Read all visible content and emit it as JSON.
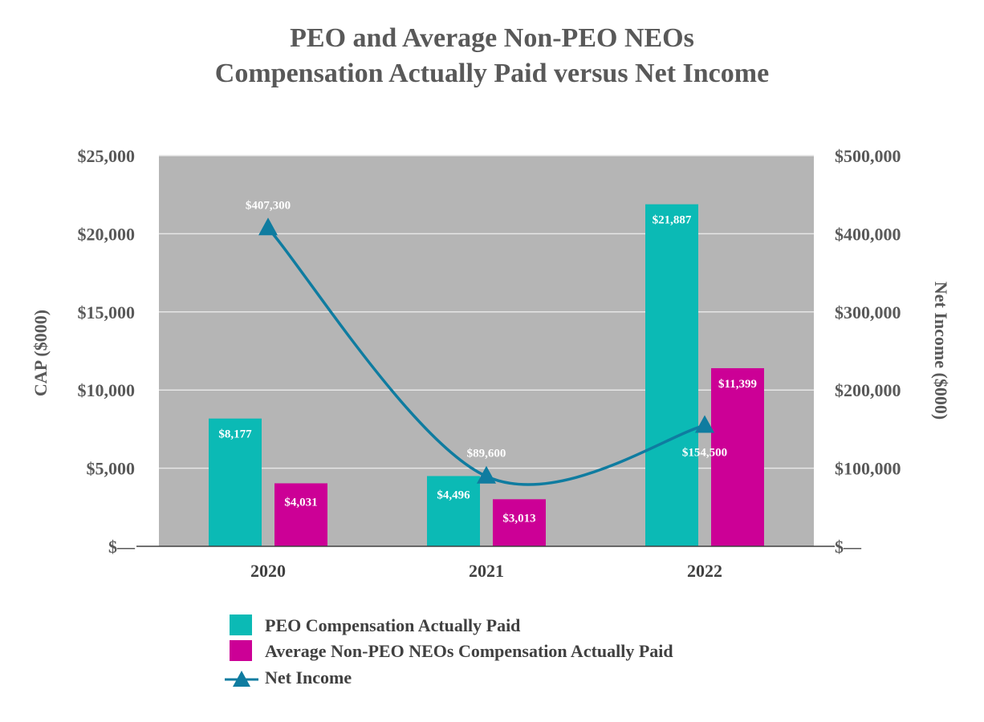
{
  "chart_data": {
    "type": "bar",
    "title": [
      "PEO and Average Non-PEO NEOs",
      "Compensation Actually Paid versus Net Income"
    ],
    "categories": [
      "2020",
      "2021",
      "2022"
    ],
    "series": [
      {
        "name": "PEO Compensation Actually Paid",
        "type": "bar",
        "axis": "left",
        "color": "#0BBAB5",
        "values": [
          8177,
          4496,
          21887
        ],
        "labels": [
          "$8,177",
          "$4,496",
          "$21,887"
        ]
      },
      {
        "name": "Average Non-PEO NEOs Compensation Actually Paid",
        "type": "bar",
        "axis": "left",
        "color": "#CC0096",
        "values": [
          4031,
          3013,
          11399
        ],
        "labels": [
          "$4,031",
          "$3,013",
          "$11,399"
        ]
      },
      {
        "name": "Net Income",
        "type": "line",
        "axis": "right",
        "color": "#0F7CA0",
        "marker": "triangle",
        "values": [
          407300,
          89600,
          154500
        ],
        "labels": [
          "$407,300",
          "$89,600",
          "$154,500"
        ]
      }
    ],
    "ylabel": "CAP ($000)",
    "y2label": "Net Income ($000)",
    "ylim": [
      0,
      25000
    ],
    "y2lim": [
      0,
      500000
    ],
    "yticks": [
      0,
      5000,
      10000,
      15000,
      20000,
      25000
    ],
    "ytick_labels": [
      "$—",
      "$5,000",
      "$10,000",
      "$15,000",
      "$20,000",
      "$25,000"
    ],
    "y2ticks": [
      0,
      100000,
      200000,
      300000,
      400000,
      500000
    ],
    "y2tick_labels": [
      "$—",
      "$100,000",
      "$200,000",
      "$300,000",
      "$400,000",
      "$500,000"
    ],
    "grid": true,
    "legend": "bottom"
  }
}
